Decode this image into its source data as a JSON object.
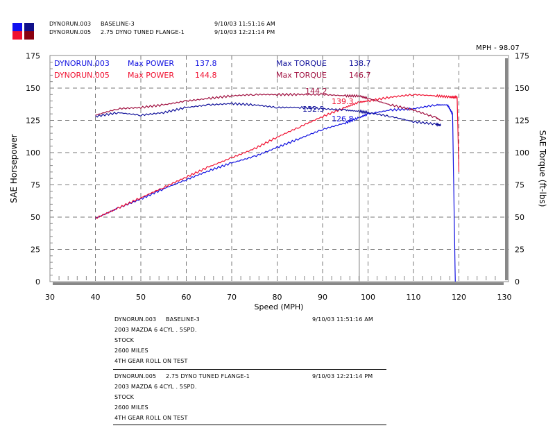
{
  "header": {
    "runs": [
      {
        "name": "DYNORUN.003",
        "desc": "BASELINE-3",
        "time": "9/10/03 11:51:16 AM"
      },
      {
        "name": "DYNORUN.005",
        "desc": "2.75 DYNO TUNED FLANGE-1",
        "time": "9/10/03 12:21:14 PM"
      }
    ],
    "cursor_readout": "MPH - 98.07"
  },
  "legend": [
    {
      "run": "DYNORUN.003",
      "power_label": "Max POWER",
      "power": "137.8",
      "torque_label": "Max TORQUE",
      "torque": "138.7"
    },
    {
      "run": "DYNORUN.005",
      "power_label": "Max POWER",
      "power": "144.8",
      "torque_label": "Max TORQUE",
      "torque": "146.7"
    }
  ],
  "notes": [
    {
      "name": "DYNORUN.003",
      "desc": "BASELINE-3",
      "time": "9/10/03 11:51:16 AM",
      "lines": [
        "2003 MAZDA 6 4CYL . 5SPD.",
        "STOCK",
        "2600 MILES",
        "4TH GEAR ROLL ON TEST"
      ]
    },
    {
      "name": "DYNORUN.005",
      "desc": "2.75 DYNO TUNED FLANGE-1",
      "time": "9/10/03 12:21:14 PM",
      "lines": [
        "2003 MAZDA 6 4CYL . 5SPD.",
        "STOCK",
        "2600 MILES",
        "4TH GEAR ROLL ON TEST"
      ]
    }
  ],
  "colors": {
    "run003_power": "#1010e0",
    "run003_torque": "#10109a",
    "run005_power": "#f01030",
    "run005_torque": "#a01040"
  },
  "chart_data": {
    "type": "line",
    "xlabel": "Speed (MPH)",
    "ylabel": "SAE Horsepower",
    "y2label": "SAE Torque (ft-lbs)",
    "xlim": [
      30,
      130
    ],
    "ylim": [
      0,
      175
    ],
    "y2lim": [
      0,
      175
    ],
    "xticks": [
      30,
      40,
      50,
      60,
      70,
      80,
      90,
      100,
      110,
      120,
      130
    ],
    "yticks": [
      0,
      25,
      50,
      75,
      100,
      125,
      150,
      175
    ],
    "grid": true,
    "cursor_x": 98.07,
    "cursor_values": [
      {
        "series": "DYNORUN.005 torque",
        "value": "144.2"
      },
      {
        "series": "DYNORUN.005 power",
        "value": "139.3"
      },
      {
        "series": "DYNORUN.003 torque",
        "value": "132.3"
      },
      {
        "series": "DYNORUN.003 power",
        "value": "126.8"
      }
    ],
    "series": [
      {
        "name": "DYNORUN.003 power",
        "color": "#1010e0",
        "x": [
          40,
          45,
          50,
          55,
          60,
          65,
          70,
          75,
          80,
          85,
          90,
          95,
          98,
          100,
          105,
          110,
          115,
          117.5,
          118.6,
          119.2
        ],
        "y": [
          49,
          57,
          64,
          72,
          79,
          86,
          92,
          97,
          104,
          111,
          118,
          123,
          127,
          130,
          133,
          134,
          137,
          137,
          130,
          0
        ]
      },
      {
        "name": "DYNORUN.005 power",
        "color": "#f01030",
        "x": [
          40,
          45,
          50,
          55,
          60,
          65,
          70,
          75,
          80,
          85,
          90,
          95,
          98,
          100,
          105,
          110,
          115,
          118,
          119.6,
          120
        ],
        "y": [
          49,
          57,
          65,
          73,
          81,
          89,
          96,
          103,
          112,
          120,
          128,
          135,
          139,
          140,
          143,
          145,
          144,
          143,
          143,
          85
        ]
      },
      {
        "name": "DYNORUN.003 torque",
        "color": "#10109a",
        "x": [
          40,
          45,
          50,
          55,
          60,
          65,
          70,
          75,
          80,
          85,
          90,
          95,
          98,
          100,
          105,
          110,
          115,
          116
        ],
        "y": [
          128,
          131,
          129,
          131,
          135,
          137,
          138,
          137,
          135,
          135,
          134,
          133,
          132,
          131,
          128,
          124,
          122,
          121
        ]
      },
      {
        "name": "DYNORUN.005 torque",
        "color": "#a01040",
        "x": [
          40,
          45,
          50,
          55,
          60,
          65,
          70,
          75,
          80,
          85,
          90,
          95,
          98,
          100,
          105,
          110,
          115,
          116
        ],
        "y": [
          129,
          134,
          135,
          137,
          140,
          142,
          144,
          145,
          145,
          145,
          145,
          144,
          144,
          142,
          137,
          133,
          127,
          125
        ]
      }
    ]
  }
}
